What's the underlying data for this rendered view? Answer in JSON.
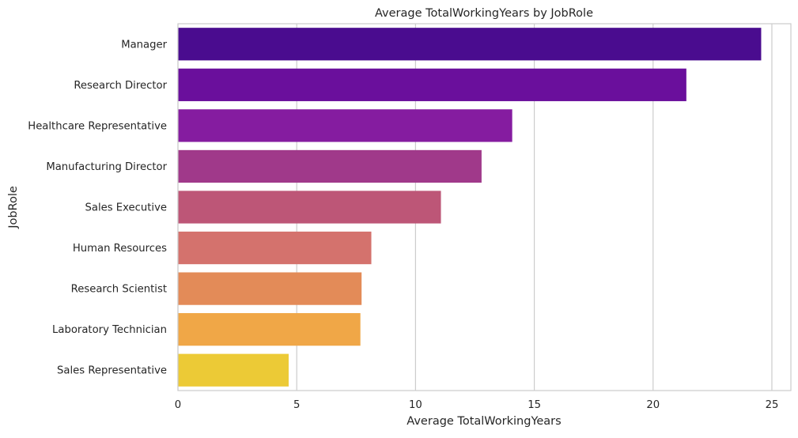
{
  "chart_data": {
    "type": "bar",
    "orientation": "horizontal",
    "title": "Average TotalWorkingYears by JobRole",
    "xlabel": "Average TotalWorkingYears",
    "ylabel": "JobRole",
    "xlim": [
      0,
      25.8
    ],
    "xticks": [
      0,
      5,
      10,
      15,
      20,
      25
    ],
    "grid": "x-major",
    "categories": [
      "Manager",
      "Research Director",
      "Healthcare Representative",
      "Manufacturing Director",
      "Sales Executive",
      "Human Resources",
      "Research Scientist",
      "Laboratory Technician",
      "Sales Representative"
    ],
    "values": [
      24.55,
      21.4,
      14.07,
      12.78,
      11.07,
      8.14,
      7.73,
      7.68,
      4.66
    ],
    "colors": [
      "#4a0c8f",
      "#6a0f9c",
      "#851ca0",
      "#a0398a",
      "#bd5677",
      "#d4726d",
      "#e38b58",
      "#f0a747",
      "#ecca36"
    ]
  }
}
